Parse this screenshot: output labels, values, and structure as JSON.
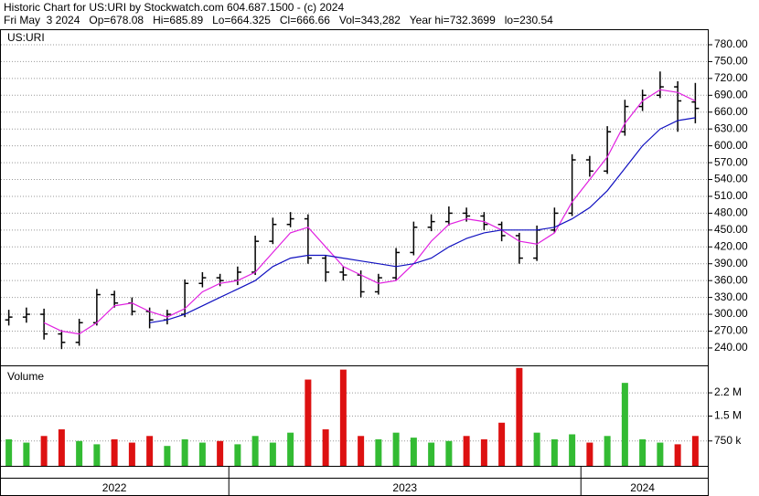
{
  "chart_data": {
    "type": "ohlc",
    "title": "Historic Chart for US:URI by Stockwatch.com 604.687.1500 - (c) 2024",
    "subtitle": "Fri May  3 2024   Op=678.08   Hi=685.89   Lo=664.325   Cl=666.66   Vol=343,282   Year hi=732.3699   lo=230.54",
    "symbol": "US:URI",
    "categories": [
      "2022",
      null,
      null,
      null,
      null,
      null,
      null,
      null,
      null,
      null,
      null,
      null,
      null,
      "2023",
      null,
      null,
      null,
      null,
      null,
      null,
      null,
      null,
      null,
      null,
      null,
      null,
      null,
      null,
      null,
      null,
      null,
      null,
      null,
      "2024",
      null,
      null,
      null,
      null,
      null,
      null
    ],
    "ohlc": [
      [
        290,
        308,
        280,
        295
      ],
      [
        295,
        312,
        285,
        300
      ],
      [
        300,
        310,
        255,
        265
      ],
      [
        265,
        272,
        238,
        250
      ],
      [
        250,
        292,
        244,
        285
      ],
      [
        285,
        345,
        280,
        335
      ],
      [
        335,
        342,
        312,
        320
      ],
      [
        320,
        330,
        298,
        305
      ],
      [
        305,
        312,
        275,
        290
      ],
      [
        290,
        308,
        282,
        300
      ],
      [
        300,
        362,
        295,
        355
      ],
      [
        355,
        375,
        348,
        365
      ],
      [
        365,
        372,
        350,
        360
      ],
      [
        360,
        385,
        352,
        375
      ],
      [
        375,
        440,
        370,
        430
      ],
      [
        430,
        472,
        425,
        460
      ],
      [
        460,
        482,
        455,
        470
      ],
      [
        470,
        478,
        390,
        400
      ],
      [
        400,
        405,
        358,
        375
      ],
      [
        375,
        385,
        360,
        370
      ],
      [
        370,
        378,
        330,
        340
      ],
      [
        340,
        372,
        335,
        365
      ],
      [
        365,
        418,
        360,
        410
      ],
      [
        410,
        465,
        405,
        455
      ],
      [
        455,
        478,
        448,
        465
      ],
      [
        465,
        492,
        458,
        480
      ],
      [
        480,
        490,
        465,
        475
      ],
      [
        475,
        482,
        450,
        460
      ],
      [
        460,
        465,
        430,
        440
      ],
      [
        440,
        445,
        390,
        400
      ],
      [
        400,
        458,
        395,
        450
      ],
      [
        450,
        490,
        445,
        480
      ],
      [
        480,
        585,
        475,
        575
      ],
      [
        575,
        582,
        545,
        555
      ],
      [
        555,
        635,
        550,
        625
      ],
      [
        625,
        682,
        618,
        670
      ],
      [
        670,
        700,
        662,
        690
      ],
      [
        690,
        732.37,
        685,
        705
      ],
      [
        705,
        715,
        625,
        680
      ],
      [
        678.08,
        712,
        640,
        666.66
      ]
    ],
    "ohlc_color": "#000000",
    "moving_averages": [
      {
        "color": "#e020e0",
        "values": [
          null,
          null,
          285,
          270,
          265,
          285,
          315,
          320,
          305,
          295,
          310,
          340,
          355,
          360,
          375,
          410,
          445,
          455,
          420,
          385,
          370,
          355,
          360,
          390,
          430,
          460,
          470,
          465,
          450,
          430,
          425,
          445,
          500,
          540,
          580,
          640,
          680,
          700,
          695,
          680
        ]
      },
      {
        "color": "#1010c0",
        "values": [
          null,
          null,
          null,
          null,
          null,
          null,
          null,
          null,
          285,
          290,
          300,
          315,
          330,
          345,
          360,
          385,
          400,
          405,
          405,
          400,
          395,
          390,
          385,
          390,
          400,
          420,
          435,
          445,
          450,
          450,
          450,
          455,
          470,
          490,
          520,
          560,
          600,
          630,
          645,
          650
        ]
      }
    ],
    "ylim": [
      209,
      806
    ],
    "yticks": [
      {
        "value": 240,
        "label": "240.00"
      },
      {
        "value": 270,
        "label": "270.00"
      },
      {
        "value": 300,
        "label": "300.00"
      },
      {
        "value": 330,
        "label": "330.00"
      },
      {
        "value": 360,
        "label": "360.00"
      },
      {
        "value": 390,
        "label": "390.00"
      },
      {
        "value": 420,
        "label": "420.00"
      },
      {
        "value": 450,
        "label": "450.00"
      },
      {
        "value": 480,
        "label": "480.00"
      },
      {
        "value": 510,
        "label": "510.00"
      },
      {
        "value": 540,
        "label": "540.00"
      },
      {
        "value": 570,
        "label": "570.00"
      },
      {
        "value": 600,
        "label": "600.00"
      },
      {
        "value": 630,
        "label": "630.00"
      },
      {
        "value": 660,
        "label": "660.00"
      },
      {
        "value": 690,
        "label": "690.00"
      },
      {
        "value": 720,
        "label": "720.00"
      },
      {
        "value": 750,
        "label": "750.00"
      },
      {
        "value": 780,
        "label": "780.00"
      }
    ],
    "grid": true,
    "volume": {
      "label": "Volume",
      "values": [
        800000,
        700000,
        900000,
        1100000,
        750000,
        650000,
        800000,
        700000,
        900000,
        600000,
        800000,
        700000,
        750000,
        650000,
        900000,
        700000,
        1000000,
        2600000,
        1100000,
        2900000,
        900000,
        800000,
        1000000,
        850000,
        700000,
        750000,
        900000,
        800000,
        1300000,
        2950000,
        1000000,
        800000,
        950000,
        700000,
        900000,
        2500000,
        800000,
        700000,
        650000,
        900000
      ],
      "ylim": [
        0,
        3000000
      ],
      "yticks": [
        {
          "value": 750000,
          "label": "750 k"
        },
        {
          "value": 1500000,
          "label": "1.5 M"
        },
        {
          "value": 2200000,
          "label": "2.2 M"
        }
      ],
      "up_color": "#33bb33",
      "down_color": "#dd1111"
    }
  }
}
